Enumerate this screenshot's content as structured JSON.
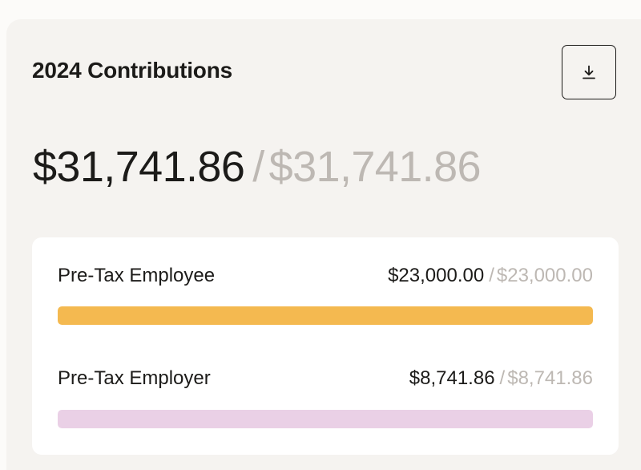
{
  "card": {
    "title": "2024 Contributions",
    "download_icon": "download-icon"
  },
  "total": {
    "current": "$31,741.86",
    "separator": "/",
    "limit": "$31,741.86"
  },
  "rows": [
    {
      "label": "Pre-Tax Employee",
      "current": "$23,000.00",
      "separator": "/",
      "limit": "$23,000.00",
      "progress": 1.0,
      "color": "#f4b950"
    },
    {
      "label": "Pre-Tax Employer",
      "current": "$8,741.86",
      "separator": "/",
      "limit": "$8,741.86",
      "progress": 1.0,
      "color": "#ead0e6"
    }
  ]
}
